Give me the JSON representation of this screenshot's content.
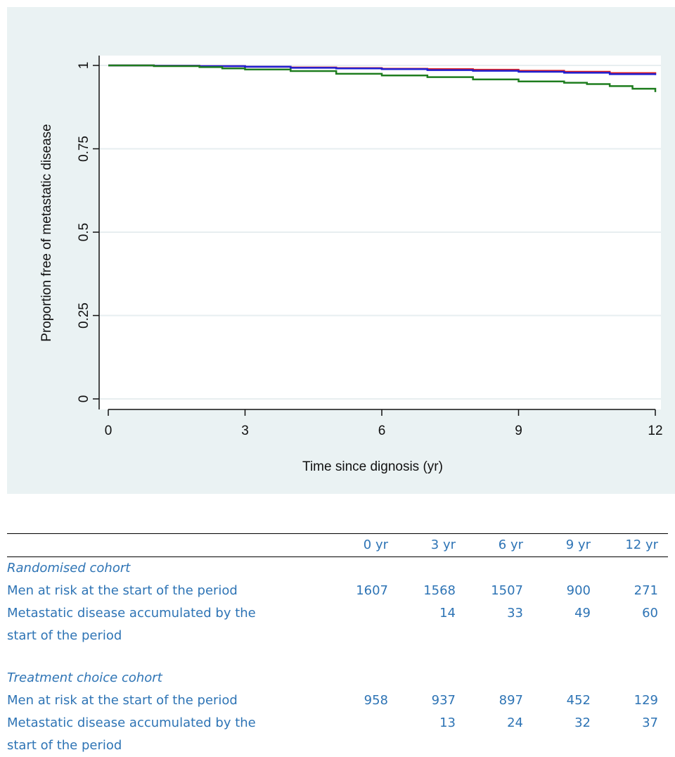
{
  "chart_data": {
    "type": "line",
    "title": "",
    "xlabel": "Time since dignosis (yr)",
    "ylabel": "Proportion free of metastatic disease",
    "xlim": [
      0,
      12
    ],
    "ylim": [
      0,
      1
    ],
    "x_ticks": [
      0,
      3,
      6,
      9,
      12
    ],
    "y_ticks": [
      0,
      0.25,
      0.5,
      0.75,
      1
    ],
    "x_tick_labels": [
      "0",
      "3",
      "6",
      "9",
      "12"
    ],
    "y_tick_labels": [
      "0",
      "0.25",
      "0.5",
      "0.75",
      "1"
    ],
    "grid": true,
    "series": [
      {
        "color": "#e02020",
        "x": [
          0,
          1,
          2,
          3,
          4,
          5,
          6,
          7,
          8,
          9,
          10,
          11,
          12
        ],
        "y": [
          1.0,
          0.999,
          0.998,
          0.996,
          0.994,
          0.992,
          0.99,
          0.989,
          0.987,
          0.984,
          0.981,
          0.977,
          0.975
        ]
      },
      {
        "color": "#1f1fd1",
        "x": [
          0,
          1,
          2,
          3,
          4,
          5,
          6,
          7,
          8,
          9,
          10,
          11,
          12
        ],
        "y": [
          1.0,
          0.999,
          0.998,
          0.996,
          0.993,
          0.991,
          0.989,
          0.986,
          0.984,
          0.981,
          0.978,
          0.974,
          0.971
        ]
      },
      {
        "color": "#1e7d1e",
        "x": [
          0,
          1,
          2,
          2.5,
          3,
          4,
          5,
          6,
          7,
          8,
          9,
          10,
          10.5,
          11,
          11.5,
          12
        ],
        "y": [
          1.0,
          0.998,
          0.995,
          0.991,
          0.988,
          0.983,
          0.975,
          0.97,
          0.965,
          0.958,
          0.952,
          0.948,
          0.944,
          0.938,
          0.93,
          0.92
        ]
      }
    ]
  },
  "table": {
    "headers": [
      "",
      "0 yr",
      "3 yr",
      "6 yr",
      "9 yr",
      "12 yr"
    ],
    "randomised": {
      "title": "Randomised cohort",
      "at_risk_label": "Men at risk at the start of the period",
      "at_risk": [
        "1607",
        "1568",
        "1507",
        "900",
        "271"
      ],
      "metastatic_label_1": "Metastatic disease accumulated by the",
      "metastatic_label_2": "start of the period",
      "metastatic": [
        "",
        "14",
        "33",
        "49",
        "60"
      ]
    },
    "treatment": {
      "title": "Treatment choice cohort",
      "at_risk_label": "Men at risk at the start of the period",
      "at_risk": [
        "958",
        "937",
        "897",
        "452",
        "129"
      ],
      "metastatic_label_1": "Metastatic disease accumulated by the",
      "metastatic_label_2": "start of the period",
      "metastatic": [
        "",
        "13",
        "24",
        "32",
        "37"
      ]
    }
  }
}
